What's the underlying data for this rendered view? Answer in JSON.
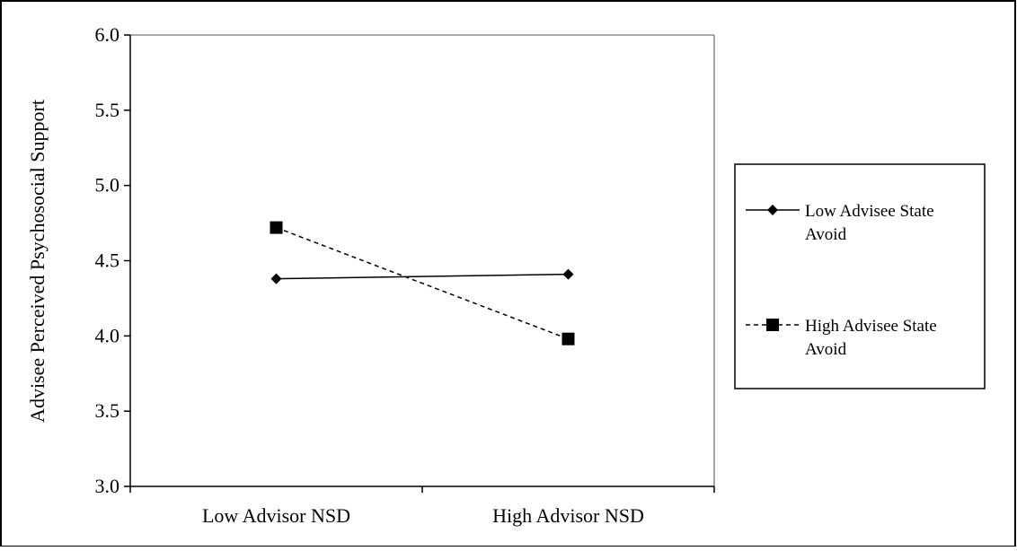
{
  "chart_data": {
    "type": "line",
    "title": "",
    "xlabel": "",
    "ylabel": "Advisee Perceived Psychosocial Support",
    "categories": [
      "Low Advisor NSD",
      "High Advisor NSD"
    ],
    "ylim": [
      3.0,
      6.0
    ],
    "yticks": [
      3.0,
      3.5,
      4.0,
      4.5,
      5.0,
      5.5,
      6.0
    ],
    "ytick_labels": [
      "3.0",
      "3.5",
      "4.0",
      "4.5",
      "5.0",
      "5.5",
      "6.0"
    ],
    "grid": false,
    "legend_position": "right",
    "series": [
      {
        "name_lines": [
          "Low Advisee State",
          "Avoid"
        ],
        "values": [
          4.38,
          4.41
        ],
        "line_style": "solid",
        "marker": "diamond",
        "color": "#000000"
      },
      {
        "name_lines": [
          "High Advisee State",
          "Avoid"
        ],
        "values": [
          4.72,
          3.98
        ],
        "line_style": "dashed",
        "marker": "square",
        "color": "#000000"
      }
    ]
  }
}
